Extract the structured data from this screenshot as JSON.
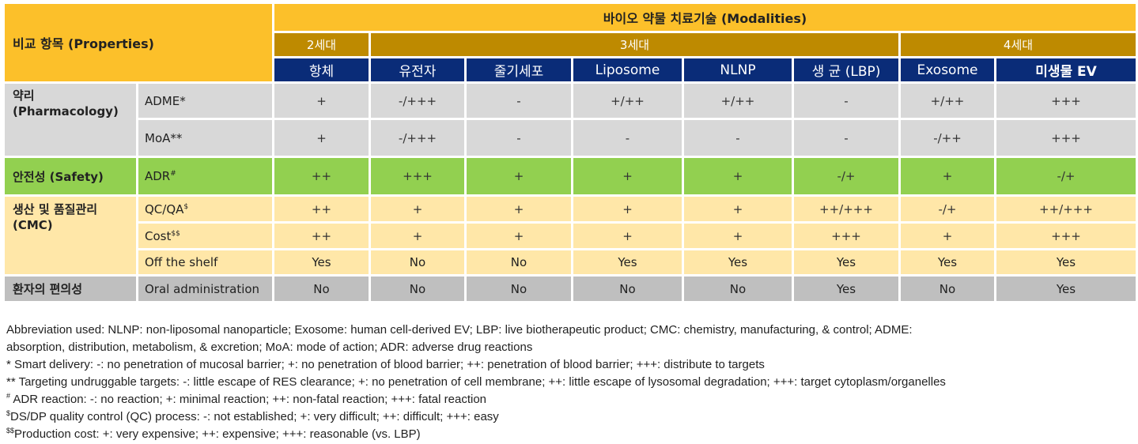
{
  "header": {
    "properties": "비교 항목 (Properties)",
    "modalities": "바이오 약물 치료기술 (Modalities)",
    "generations": [
      "2세대",
      "3세대",
      "4세대"
    ],
    "columns": [
      "항체",
      "유전자",
      "줄기세포",
      "Liposome",
      "NLNP",
      "생 균 (LBP)",
      "Exosome",
      "미생물 EV"
    ]
  },
  "groups": {
    "pharmacology": "약리\n(Pharmacology)",
    "safety": "안전성 (Safety)",
    "cmc": "생산 및 품질관리\n(CMC)",
    "convenience": "환자의 편의성"
  },
  "rows": {
    "adme": {
      "label": "ADME*",
      "values": [
        "+",
        "-/+++",
        "-",
        "+/++",
        "+/++",
        "-",
        "+/++",
        "+++"
      ]
    },
    "moa": {
      "label": "MoA**",
      "values": [
        "+",
        "-/+++",
        "-",
        "-",
        "-",
        "-",
        "-/++",
        "+++"
      ]
    },
    "adr": {
      "label": "ADR",
      "sup": "#",
      "values": [
        "++",
        "+++",
        "+",
        "+",
        "+",
        "-/+",
        "+",
        "-/+"
      ]
    },
    "qcqa": {
      "label": "QC/QA",
      "sup": "$",
      "values": [
        "++",
        "+",
        "+",
        "+",
        "+",
        "++/+++",
        "-/+",
        "++/+++"
      ]
    },
    "cost": {
      "label": "Cost",
      "sup": "$$",
      "values": [
        "++",
        "+",
        "+",
        "+",
        "+",
        "+++",
        "+",
        "+++"
      ]
    },
    "offshelf": {
      "label": "Off the shelf",
      "values": [
        "Yes",
        "No",
        "No",
        "Yes",
        "Yes",
        "Yes",
        "Yes",
        "Yes"
      ]
    },
    "oral": {
      "label": "Oral administration",
      "values": [
        "No",
        "No",
        "No",
        "No",
        "No",
        "Yes",
        "No",
        "Yes"
      ]
    }
  },
  "notes": {
    "abbrev1": "Abbreviation used: NLNP: non-liposomal nanoparticle; Exosome: human cell-derived EV; LBP: live biotherapeutic product; CMC: chemistry, manufacturing, & control; ADME:",
    "abbrev2": "absorption, distribution, metabolism, & excretion; MoA: mode of action; ADR: adverse drug reactions",
    "n1": "* Smart delivery: -: no penetration of mucosal barrier; +: no penetration of blood barrier; ++: penetration of blood barrier; +++: distribute to targets",
    "n2": "** Targeting undruggable targets: -: little escape of RES clearance; +: no penetration of cell membrane; ++: little escape of lysosomal degradation; +++:  target cytoplasm/organelles",
    "n3_sym": "#",
    "n3": " ADR reaction: -: no reaction; +: minimal reaction; ++: non-fatal reaction; +++: fatal reaction",
    "n4_sym": "$",
    "n4": "DS/DP quality control (QC) process: -: not established; +: very difficult; ++: difficult; +++: easy",
    "n5_sym": "$$",
    "n5": "Production cost: +: very expensive; ++: expensive; +++: reasonable (vs. LBP)"
  }
}
